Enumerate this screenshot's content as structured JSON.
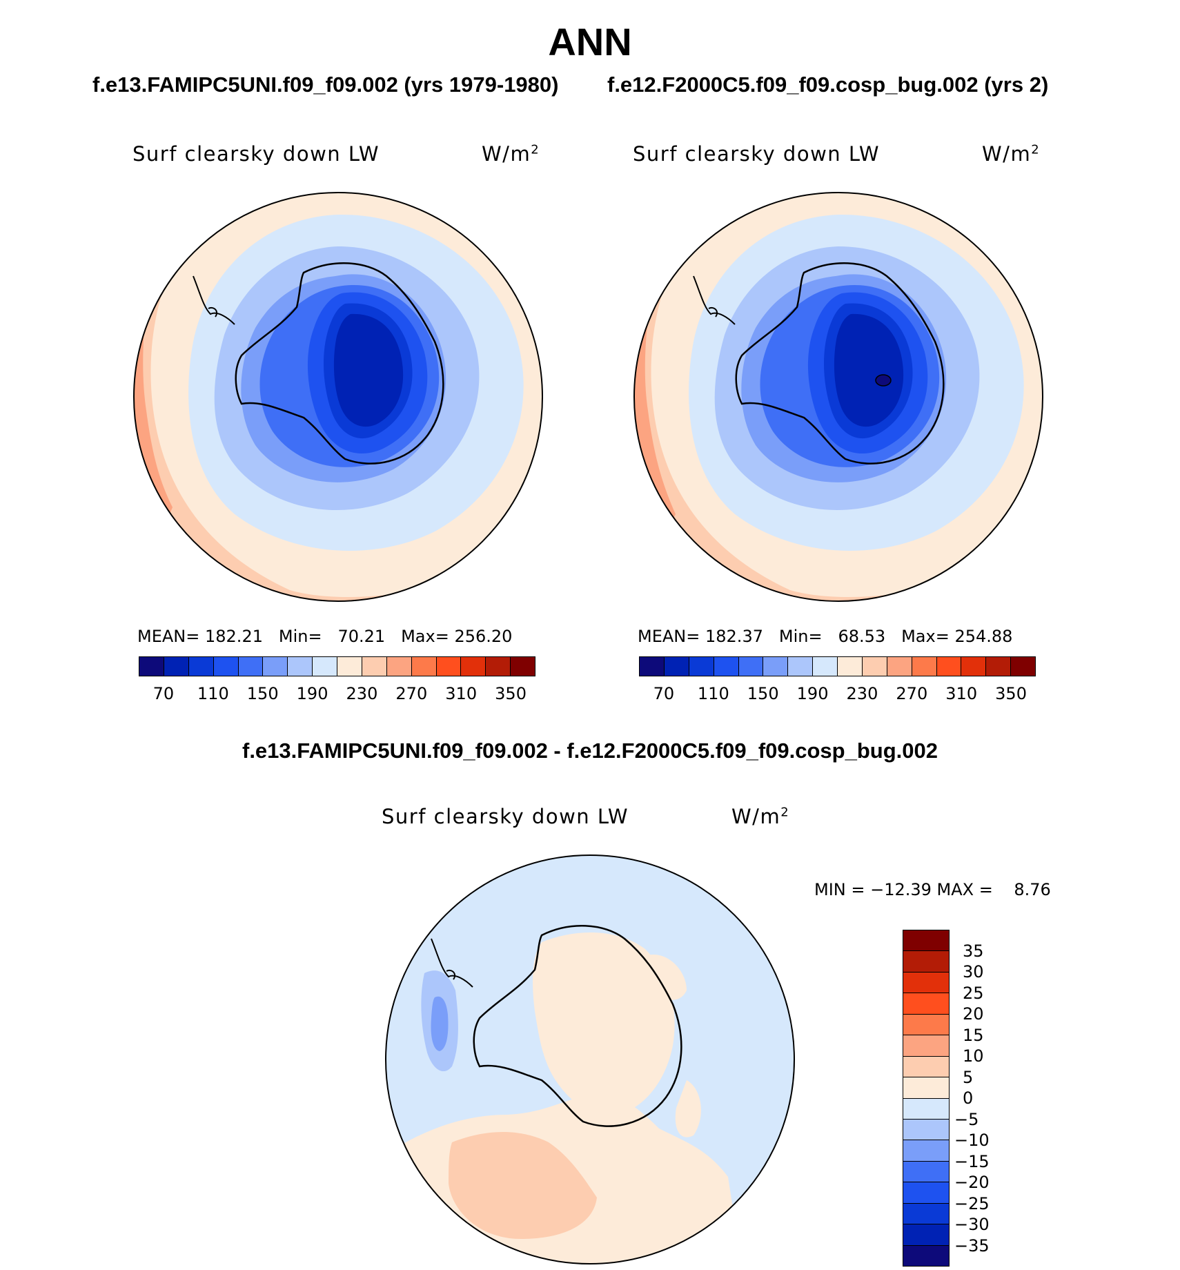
{
  "title": "ANN",
  "panels": [
    {
      "case": "f.e13.FAMIPC5UNI.f09_f09.002 (yrs 1979-1980)",
      "variable": "Surf clearsky down LW",
      "units": "W/m",
      "units_sup": "2",
      "stats": {
        "mean_label": "MEAN=",
        "mean": "182.21",
        "min_label": "Min=",
        "min": "70.21",
        "max_label": "Max=",
        "max": "256.20"
      }
    },
    {
      "case": "f.e12.F2000C5.f09_f09.cosp_bug.002 (yrs 2)",
      "variable": "Surf clearsky down LW",
      "units": "W/m",
      "units_sup": "2",
      "stats": {
        "mean_label": "MEAN=",
        "mean": "182.37",
        "min_label": "Min=",
        "min": "68.53",
        "max_label": "Max=",
        "max": "254.88"
      }
    }
  ],
  "field_colorbar": {
    "colors": [
      "#0d0a7a",
      "#0022b4",
      "#0a3ad6",
      "#1e52f0",
      "#3f6ff6",
      "#7a9ef9",
      "#acc6fb",
      "#d6e8fc",
      "#fdebd9",
      "#fdcdb0",
      "#fca481",
      "#fd7a4a",
      "#ff4f1e",
      "#e2300a",
      "#b31c06",
      "#7f0000"
    ],
    "ticks": [
      "70",
      "110",
      "150",
      "190",
      "230",
      "270",
      "310",
      "350"
    ]
  },
  "difference": {
    "title": "f.e13.FAMIPC5UNI.f09_f09.002 - f.e12.F2000C5.f09_f09.cosp_bug.002",
    "variable": "Surf clearsky down LW",
    "units": "W/m",
    "units_sup": "2",
    "minmax": "MIN = −12.39 MAX =    8.76",
    "colorbar": {
      "colors_top_to_bottom": [
        "#7f0000",
        "#b31c06",
        "#e2300a",
        "#ff4f1e",
        "#fd7a4a",
        "#fca481",
        "#fdcdb0",
        "#fdebd9",
        "#d6e8fc",
        "#acc6fb",
        "#7a9ef9",
        "#3f6ff6",
        "#1e52f0",
        "#0a3ad6",
        "#0022b4",
        "#0d0a7a"
      ],
      "ticks": [
        "35",
        "30",
        "25",
        "20",
        "15",
        "10",
        "5",
        "0",
        "−5",
        "−10",
        "−15",
        "−20",
        "−25",
        "−30",
        "−35"
      ]
    }
  }
}
